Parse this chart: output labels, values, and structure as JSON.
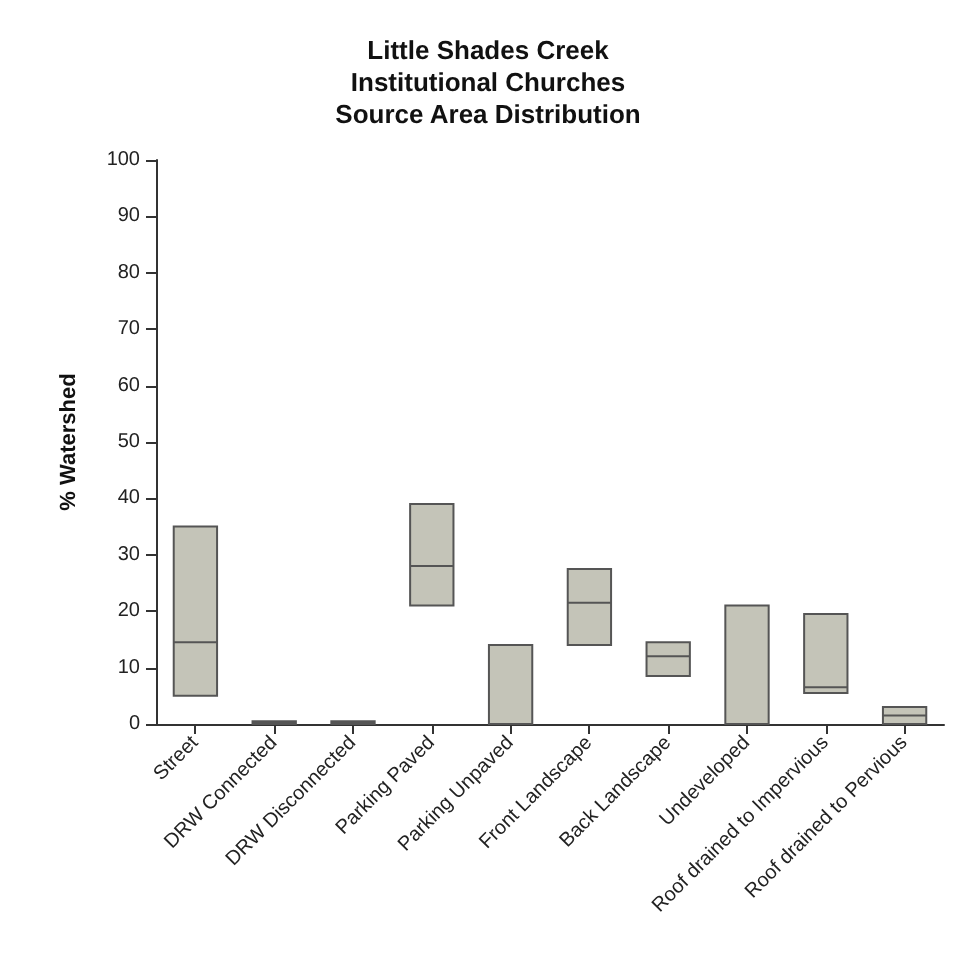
{
  "chart_data": {
    "type": "box",
    "title": "Little Shades Creek\nInstitutional Churches\nSource Area Distribution",
    "ylabel": "% Watershed",
    "categories": [
      "Street",
      "DRW Connected",
      "DRW Disconnected",
      "Parking Paved",
      "Parking Unpaved",
      "Front Landscape",
      "Back Landscape",
      "Undeveloped",
      "Roof drained to Impervious",
      "Roof drained to Pervious"
    ],
    "boxes": [
      {
        "low": 5,
        "q1": 5,
        "median": 14.5,
        "q3": 35,
        "high": 35
      },
      {
        "low": 0,
        "q1": 0,
        "median": 0.3,
        "q3": 0.5,
        "high": 0.5
      },
      {
        "low": 0,
        "q1": 0,
        "median": 0.3,
        "q3": 0.5,
        "high": 0.5
      },
      {
        "low": 21,
        "q1": 21,
        "median": 28,
        "q3": 39,
        "high": 39
      },
      {
        "low": 0,
        "q1": 0,
        "median": 0,
        "q3": 14,
        "high": 14
      },
      {
        "low": 14,
        "q1": 14,
        "median": 21.5,
        "q3": 27.5,
        "high": 27.5
      },
      {
        "low": 8.5,
        "q1": 8.5,
        "median": 12,
        "q3": 14.5,
        "high": 14.5
      },
      {
        "low": 0,
        "q1": 0,
        "median": 0,
        "q3": 21,
        "high": 21
      },
      {
        "low": 5.5,
        "q1": 5.5,
        "median": 6.5,
        "q3": 19.5,
        "high": 19.5
      },
      {
        "low": 0,
        "q1": 0,
        "median": 1.5,
        "q3": 3,
        "high": 3
      }
    ],
    "color": "#c4c4b8",
    "ylim": [
      0,
      100
    ],
    "yticks": [
      0,
      10,
      20,
      30,
      40,
      50,
      60,
      70,
      80,
      90,
      100
    ],
    "grid": false
  }
}
